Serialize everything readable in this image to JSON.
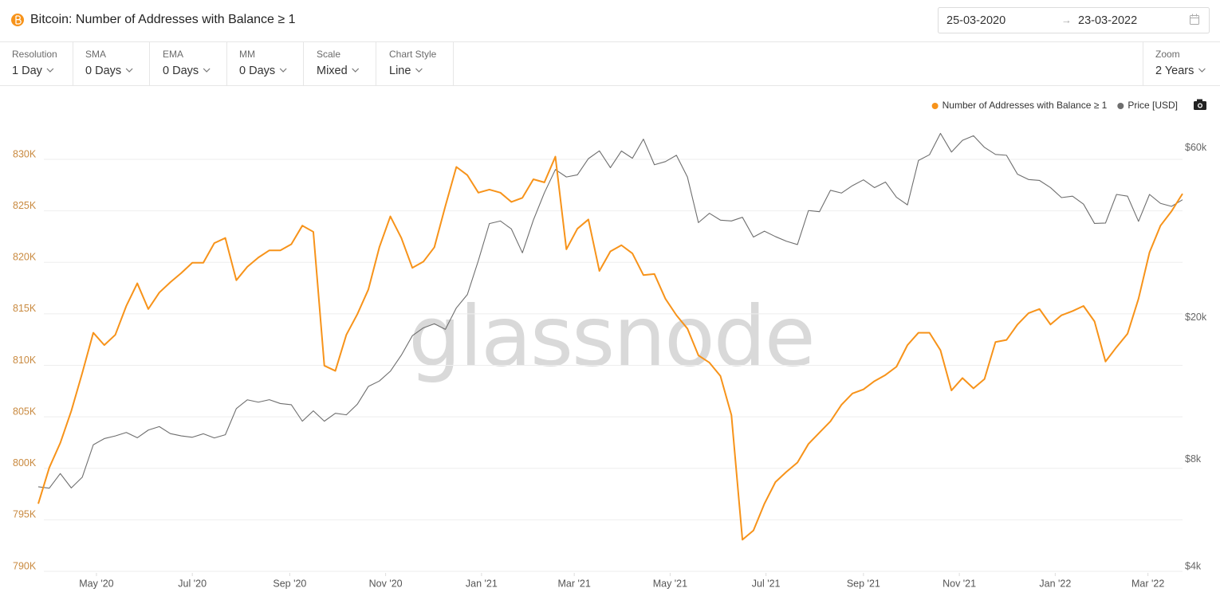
{
  "header": {
    "title": "Bitcoin: Number of Addresses with Balance ≥ 1",
    "date_from": "25-03-2020",
    "date_separator": "→",
    "date_to": "23-03-2022"
  },
  "toolbar": [
    {
      "label": "Resolution",
      "value": "1 Day"
    },
    {
      "label": "SMA",
      "value": "0 Days"
    },
    {
      "label": "EMA",
      "value": "0 Days"
    },
    {
      "label": "MM",
      "value": "0 Days"
    },
    {
      "label": "Scale",
      "value": "Mixed"
    },
    {
      "label": "Chart Style",
      "value": "Line"
    },
    {
      "label": "Zoom",
      "value": "2 Years"
    }
  ],
  "chart_data": {
    "type": "line",
    "watermark": "glassnode",
    "legend": "top-right",
    "grid": true,
    "xlim": [
      "2020-03-25",
      "2022-03-23"
    ],
    "xticks": [
      {
        "value": "2020-05-01",
        "label": "May '20"
      },
      {
        "value": "2020-07-01",
        "label": "Jul '20"
      },
      {
        "value": "2020-09-01",
        "label": "Sep '20"
      },
      {
        "value": "2020-11-01",
        "label": "Nov '20"
      },
      {
        "value": "2021-01-01",
        "label": "Jan '21"
      },
      {
        "value": "2021-03-01",
        "label": "Mar '21"
      },
      {
        "value": "2021-05-01",
        "label": "May '21"
      },
      {
        "value": "2021-07-01",
        "label": "Jul '21"
      },
      {
        "value": "2021-09-01",
        "label": "Sep '21"
      },
      {
        "value": "2021-11-01",
        "label": "Nov '21"
      },
      {
        "value": "2022-01-01",
        "label": "Jan '22"
      },
      {
        "value": "2022-03-01",
        "label": "Mar '22"
      }
    ],
    "ylim": [
      790000,
      834000
    ],
    "yticks": [
      {
        "value": 790000,
        "label": "790K"
      },
      {
        "value": 795000,
        "label": "795K"
      },
      {
        "value": 800000,
        "label": "800K"
      },
      {
        "value": 805000,
        "label": "805K"
      },
      {
        "value": 810000,
        "label": "810K"
      },
      {
        "value": 815000,
        "label": "815K"
      },
      {
        "value": 820000,
        "label": "820K"
      },
      {
        "value": 825000,
        "label": "825K"
      },
      {
        "value": 830000,
        "label": "830K"
      }
    ],
    "y2lim": [
      4000,
      75000
    ],
    "y2scale": "log",
    "y2ticks": [
      {
        "value": 4000,
        "label": "$4k"
      },
      {
        "value": 8000,
        "label": "$8k"
      },
      {
        "value": 20000,
        "label": "$20k"
      },
      {
        "value": 60000,
        "label": "$60k"
      }
    ],
    "x": [
      "2020-03-25",
      "2020-04-01",
      "2020-04-08",
      "2020-04-15",
      "2020-04-22",
      "2020-04-29",
      "2020-05-06",
      "2020-05-13",
      "2020-05-20",
      "2020-05-27",
      "2020-06-03",
      "2020-06-10",
      "2020-06-17",
      "2020-06-24",
      "2020-07-01",
      "2020-07-08",
      "2020-07-15",
      "2020-07-22",
      "2020-07-29",
      "2020-08-05",
      "2020-08-12",
      "2020-08-19",
      "2020-08-26",
      "2020-09-02",
      "2020-09-09",
      "2020-09-16",
      "2020-09-23",
      "2020-09-30",
      "2020-10-07",
      "2020-10-14",
      "2020-10-21",
      "2020-10-28",
      "2020-11-04",
      "2020-11-11",
      "2020-11-18",
      "2020-11-25",
      "2020-12-02",
      "2020-12-09",
      "2020-12-16",
      "2020-12-23",
      "2020-12-30",
      "2021-01-06",
      "2021-01-13",
      "2021-01-20",
      "2021-01-27",
      "2021-02-03",
      "2021-02-10",
      "2021-02-17",
      "2021-02-24",
      "2021-03-03",
      "2021-03-10",
      "2021-03-17",
      "2021-03-24",
      "2021-03-31",
      "2021-04-07",
      "2021-04-14",
      "2021-04-21",
      "2021-04-28",
      "2021-05-05",
      "2021-05-12",
      "2021-05-19",
      "2021-05-26",
      "2021-06-02",
      "2021-06-09",
      "2021-06-16",
      "2021-06-23",
      "2021-06-30",
      "2021-07-07",
      "2021-07-14",
      "2021-07-21",
      "2021-07-28",
      "2021-08-04",
      "2021-08-11",
      "2021-08-18",
      "2021-08-25",
      "2021-09-01",
      "2021-09-08",
      "2021-09-15",
      "2021-09-22",
      "2021-09-29",
      "2021-10-06",
      "2021-10-13",
      "2021-10-20",
      "2021-10-27",
      "2021-11-03",
      "2021-11-10",
      "2021-11-17",
      "2021-11-24",
      "2021-12-01",
      "2021-12-08",
      "2021-12-15",
      "2021-12-22",
      "2021-12-29",
      "2022-01-05",
      "2022-01-12",
      "2022-01-19",
      "2022-01-26",
      "2022-02-02",
      "2022-02-09",
      "2022-02-16",
      "2022-02-23",
      "2022-03-02",
      "2022-03-09",
      "2022-03-16",
      "2022-03-23"
    ],
    "series": [
      {
        "name": "Number of Addresses with Balance ≥ 1",
        "color": "#f7931a",
        "values": [
          796100,
          799600,
          802000,
          805100,
          808800,
          812700,
          811500,
          812500,
          815300,
          817500,
          815000,
          816600,
          817600,
          818500,
          819500,
          819500,
          821400,
          821900,
          817800,
          819100,
          820000,
          820700,
          820700,
          821300,
          823100,
          822500,
          809500,
          809000,
          812500,
          814500,
          816900,
          821000,
          824000,
          821900,
          819000,
          819600,
          821000,
          825000,
          828800,
          828000,
          826300,
          826600,
          826300,
          825400,
          825800,
          827600,
          827300,
          829800,
          820800,
          822800,
          823700,
          818700,
          820600,
          821200,
          820400,
          818300,
          818400,
          816000,
          814400,
          813100,
          810500,
          809800,
          808500,
          804700,
          792600,
          793500,
          796100,
          798200,
          799200,
          800100,
          801900,
          803000,
          804100,
          805700,
          806800,
          807200,
          808000,
          808600,
          809400,
          811500,
          812700,
          812700,
          811000,
          807100,
          808300,
          807300,
          808200,
          811800,
          812000,
          813500,
          814600,
          815000,
          813500,
          814400,
          814800,
          815300,
          813800,
          809900,
          811300,
          812600,
          816000,
          820500,
          823100,
          824500,
          826200
        ]
      },
      {
        "name": "Price [USD]",
        "color": "#6e6e6e",
        "axis": "y2",
        "values": [
          6700,
          6640,
          7300,
          6650,
          7130,
          8790,
          9150,
          9310,
          9520,
          9200,
          9670,
          9890,
          9450,
          9310,
          9230,
          9440,
          9190,
          9380,
          11110,
          11760,
          11580,
          11770,
          11480,
          11390,
          10240,
          10950,
          10240,
          10780,
          10670,
          11430,
          12820,
          13280,
          14150,
          15700,
          17800,
          18730,
          19230,
          18550,
          21310,
          23240,
          28950,
          36770,
          37390,
          35510,
          30430,
          37620,
          44880,
          52150,
          49700,
          50390,
          55960,
          58870,
          52790,
          58800,
          56100,
          63500,
          53800,
          54900,
          57200,
          49700,
          37000,
          39300,
          37600,
          37400,
          38300,
          33700,
          35000,
          33800,
          32800,
          32100,
          40000,
          39700,
          45600,
          44800,
          47000,
          48800,
          46400,
          48100,
          43600,
          41500,
          55300,
          57400,
          65900,
          58400,
          63000,
          64900,
          60200,
          57500,
          57200,
          50600,
          48900,
          48600,
          46400,
          43500,
          43900,
          41700,
          36800,
          36900,
          44400,
          43900,
          37300,
          44400,
          41900,
          41100,
          42900
        ]
      }
    ]
  }
}
